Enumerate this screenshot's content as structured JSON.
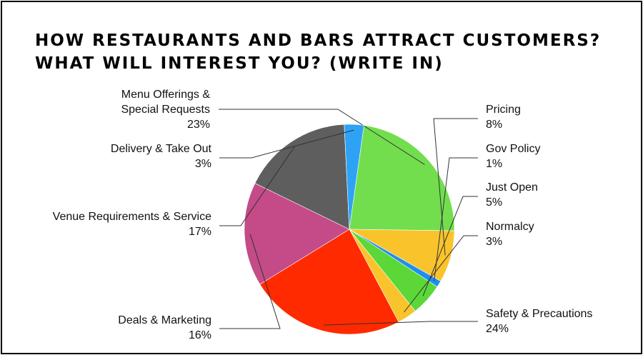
{
  "title_lines": [
    "HOW RESTAURANTS AND BARS ATTRACT CUSTOMERS?",
    "WHAT WILL INTEREST YOU? (WRITE IN)"
  ],
  "chart_data": {
    "type": "pie",
    "title": "HOW RESTAURANTS AND BARS ATTRACT CUSTOMERS? WHAT WILL INTEREST YOU? (WRITE IN)",
    "slices": [
      {
        "label_lines": [
          "Menu Offerings &",
          "Special Requests"
        ],
        "value": 23,
        "value_label": "23%",
        "color": "#72DE4E"
      },
      {
        "label_lines": [
          "Pricing"
        ],
        "value": 8,
        "value_label": "8%",
        "color": "#F9C32C"
      },
      {
        "label_lines": [
          "Gov Policy"
        ],
        "value": 1,
        "value_label": "1%",
        "color": "#1E8FF0"
      },
      {
        "label_lines": [
          "Just Open"
        ],
        "value": 5,
        "value_label": "5%",
        "color": "#5BD838"
      },
      {
        "label_lines": [
          "Normalcy"
        ],
        "value": 3,
        "value_label": "3%",
        "color": "#F9C32C"
      },
      {
        "label_lines": [
          "Safety & Precautions"
        ],
        "value": 24,
        "value_label": "24%",
        "color": "#FF2A00"
      },
      {
        "label_lines": [
          "Deals & Marketing"
        ],
        "value": 16,
        "value_label": "16%",
        "color": "#C44B87"
      },
      {
        "label_lines": [
          "Venue Requirements & Service"
        ],
        "value": 17,
        "value_label": "17%",
        "color": "#5E5E5E"
      },
      {
        "label_lines": [
          "Delivery & Take Out"
        ],
        "value": 3,
        "value_label": "3%",
        "color": "#2EA3F5"
      }
    ]
  }
}
